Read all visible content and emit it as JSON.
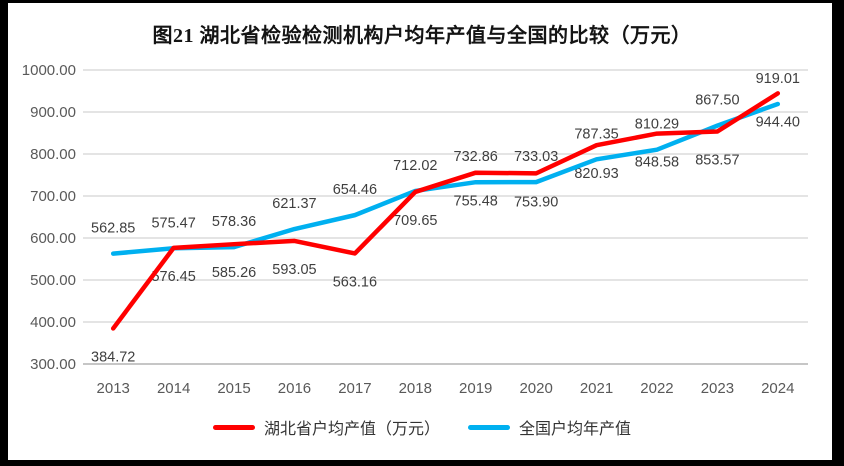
{
  "chart_data": {
    "type": "line",
    "title": "图21 湖北省检验检测机构户均年产值与全国的比较（万元）",
    "categories": [
      "2013",
      "2014",
      "2015",
      "2016",
      "2017",
      "2018",
      "2019",
      "2020",
      "2021",
      "2022",
      "2023",
      "2024"
    ],
    "series": [
      {
        "key": "hubei",
        "name": "湖北省户均产值（万元）",
        "color": "#FF0000",
        "label_position": "below",
        "values": [
          384.72,
          576.45,
          585.26,
          593.05,
          563.16,
          709.65,
          755.48,
          753.9,
          820.93,
          848.58,
          853.57,
          944.4
        ]
      },
      {
        "key": "national",
        "name": "全国户均年产值",
        "color": "#00B0F0",
        "label_position": "above",
        "values": [
          562.85,
          575.47,
          578.36,
          621.37,
          654.46,
          712.02,
          732.86,
          733.03,
          787.35,
          810.29,
          867.5,
          919.01
        ]
      }
    ],
    "y_axis": {
      "min": 300,
      "max": 1000,
      "step": 100,
      "tick_labels": [
        "1000.00",
        "900.00",
        "800.00",
        "700.00",
        "600.00",
        "500.00",
        "400.00",
        "300.00"
      ]
    },
    "x_axis": {
      "tick_labels": [
        "2013",
        "2014",
        "2015",
        "2016",
        "2017",
        "2018",
        "2019",
        "2020",
        "2021",
        "2022",
        "2023",
        "2024"
      ]
    },
    "legend_position": "bottom",
    "grid": true,
    "colors": {
      "gridline": "#E4E4E4",
      "axis_line": "#C6C6C6",
      "axis_text": "#595959",
      "data_label_text": "#3F3F3F",
      "title_text": "#141414",
      "frame_border": "#000000"
    }
  }
}
